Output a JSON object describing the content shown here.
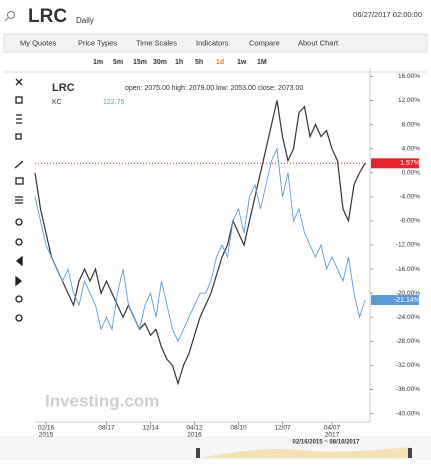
{
  "header": {
    "symbol": "LRC",
    "interval": "Daily",
    "datetime": "06/27/2017 02:00:00"
  },
  "menu": [
    "My Quotes",
    "Price Types",
    "Time Scales",
    "Indicators",
    "Compare",
    "About Chart"
  ],
  "timeframes": [
    "1m",
    "5m",
    "15m",
    "30m",
    "1h",
    "5h",
    "1d",
    "1w",
    "1M"
  ],
  "ohlc": "open: 2075.00 high: 2079.00 low: 2053.00 close: 2073.00",
  "compare": {
    "name": "KC",
    "value": "122.75"
  },
  "navigator": {
    "range": "02/16/2015 ~ 08/10/2017"
  },
  "watermark": "Investing.com",
  "chart_data": {
    "type": "line",
    "categories": [
      null,
      null,
      "02/16",
      null,
      null,
      null,
      null,
      null,
      null,
      null,
      null,
      null,
      null,
      "08/17",
      null,
      null,
      null,
      null,
      null,
      null,
      null,
      "12/14",
      null,
      null,
      null,
      null,
      null,
      null,
      null,
      "04/12",
      null,
      null,
      null,
      null,
      null,
      null,
      null,
      "08/10",
      null,
      null,
      null,
      null,
      null,
      null,
      null,
      "12/07",
      null,
      null,
      null,
      null,
      null,
      null,
      null,
      null,
      "04/07",
      null,
      null,
      null,
      null,
      null,
      null
    ],
    "years": [
      null,
      null,
      "2015",
      null,
      null,
      null,
      null,
      null,
      null,
      null,
      null,
      null,
      null,
      null,
      null,
      null,
      null,
      null,
      null,
      null,
      null,
      null,
      null,
      null,
      null,
      null,
      null,
      null,
      null,
      "2016",
      null,
      null,
      null,
      null,
      null,
      null,
      null,
      null,
      null,
      null,
      null,
      null,
      null,
      null,
      null,
      null,
      null,
      null,
      null,
      null,
      null,
      null,
      null,
      null,
      "2017",
      null,
      null,
      null,
      null,
      null,
      null
    ],
    "series": [
      {
        "name": "LRC",
        "color": "#333333",
        "end_color": "#e5242b",
        "end_label": "1.57%",
        "values": [
          0,
          -6,
          -10,
          -14,
          -16,
          -18,
          -20,
          -22,
          -18,
          -16,
          -18,
          -16,
          -20,
          -18,
          -20,
          -22,
          -24,
          -22,
          -24,
          -26,
          -25,
          -27,
          -26,
          -29,
          -31,
          -32,
          -35,
          -32,
          -30,
          -27,
          -24,
          -22,
          -20,
          -17,
          -14,
          -12,
          -8,
          -10,
          -12,
          -8,
          -4,
          0,
          4,
          8,
          12,
          6,
          2,
          4,
          10,
          11,
          6,
          8,
          6,
          7,
          4,
          2,
          -6,
          -8,
          -2,
          0,
          1.57
        ]
      },
      {
        "name": "KC",
        "color": "#5b9bd5",
        "end_color": "#5b9bd5",
        "end_label": "-21.14%",
        "values": [
          -4,
          -8,
          -12,
          -14,
          -16,
          -18,
          -16,
          -20,
          -22,
          -18,
          -20,
          -22,
          -26,
          -24,
          -26,
          -20,
          -16,
          -22,
          -24,
          -26,
          -22,
          -20,
          -24,
          -18,
          -22,
          -26,
          -28,
          -26,
          -24,
          -22,
          -20,
          -20,
          -18,
          -14,
          -12,
          -14,
          -8,
          -6,
          -10,
          -4,
          -2,
          -6,
          -2,
          2,
          4,
          -4,
          0,
          -8,
          -6,
          -10,
          -12,
          -14,
          -12,
          -16,
          -14,
          -16,
          -18,
          -14,
          -20,
          -24,
          -21.14
        ]
      }
    ],
    "ylim": [
      -41.4,
      17.4
    ],
    "yticks": [
      {
        "value": 16,
        "label": "16.00%"
      },
      {
        "value": 12,
        "label": "12.00%"
      },
      {
        "value": 8,
        "label": "8.00%"
      },
      {
        "value": 4,
        "label": "4.00%"
      },
      {
        "value": 0,
        "label": "0.00%"
      },
      {
        "value": -4,
        "label": "-4.00%"
      },
      {
        "value": -8,
        "label": "-8.00%"
      },
      {
        "value": -12,
        "label": "-12.00%"
      },
      {
        "value": -16,
        "label": "-16.00%"
      },
      {
        "value": -20,
        "label": "-20.00%"
      },
      {
        "value": -24,
        "label": "-24.00%"
      },
      {
        "value": -28,
        "label": "-28.00%"
      },
      {
        "value": -32,
        "label": "-32.00%"
      },
      {
        "value": -36,
        "label": "-36.00%"
      },
      {
        "value": -40,
        "label": "-40.00%"
      }
    ],
    "grid": false
  }
}
